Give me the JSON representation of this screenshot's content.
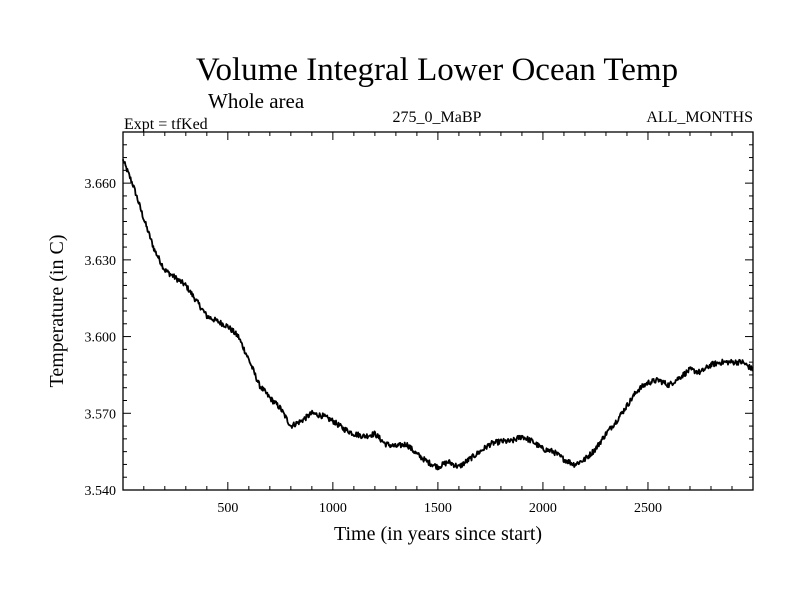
{
  "chart_data": {
    "type": "line",
    "title": "Volume Integral Lower Ocean Temp",
    "subtitle": "Whole area",
    "left_string": "Expt = tfKed",
    "center_string": "275_0_MaBP",
    "right_string": "ALL_MONTHS",
    "xlabel": "Time (in years since start)",
    "ylabel": "Temperature (in C)",
    "xlim": [
      1,
      3000
    ],
    "ylim": [
      3.54,
      3.68
    ],
    "x_ticks": [
      500,
      1000,
      1500,
      2000,
      2500
    ],
    "x_tick_labels": [
      "500",
      "1000",
      "1500",
      "2000",
      "2500"
    ],
    "y_ticks": [
      3.54,
      3.57,
      3.6,
      3.63,
      3.66
    ],
    "y_tick_labels": [
      "3.540",
      "3.570",
      "3.600",
      "3.630",
      "3.660"
    ],
    "grid": false,
    "series": [
      {
        "color": "#000000",
        "x": [
          1,
          50,
          100,
          150,
          200,
          250,
          300,
          350,
          400,
          450,
          500,
          550,
          600,
          650,
          700,
          750,
          800,
          850,
          900,
          950,
          1000,
          1050,
          1100,
          1150,
          1200,
          1250,
          1300,
          1350,
          1400,
          1450,
          1500,
          1550,
          1600,
          1650,
          1700,
          1750,
          1800,
          1850,
          1900,
          1950,
          2000,
          2050,
          2100,
          2150,
          2200,
          2250,
          2300,
          2350,
          2400,
          2450,
          2500,
          2550,
          2600,
          2650,
          2700,
          2750,
          2800,
          2850,
          2900,
          2950,
          3000
        ],
        "y": [
          3.669,
          3.659,
          3.646,
          3.634,
          3.626,
          3.623,
          3.62,
          3.614,
          3.608,
          3.606,
          3.604,
          3.6,
          3.591,
          3.581,
          3.576,
          3.572,
          3.565,
          3.567,
          3.57,
          3.569,
          3.567,
          3.564,
          3.562,
          3.561,
          3.562,
          3.558,
          3.557,
          3.558,
          3.554,
          3.551,
          3.549,
          3.551,
          3.549,
          3.552,
          3.555,
          3.558,
          3.559,
          3.559,
          3.561,
          3.559,
          3.556,
          3.555,
          3.552,
          3.55,
          3.552,
          3.556,
          3.562,
          3.567,
          3.573,
          3.579,
          3.582,
          3.583,
          3.581,
          3.584,
          3.587,
          3.586,
          3.589,
          3.59,
          3.59,
          3.59,
          3.587
        ]
      }
    ]
  }
}
